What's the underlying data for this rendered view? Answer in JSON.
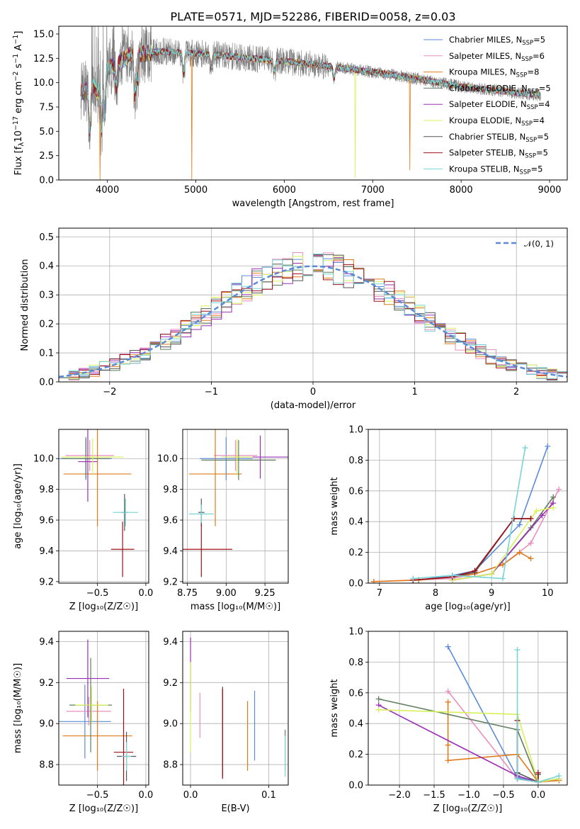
{
  "title": "PLATE=0571, MJD=52286, FIBERID=0058, z=0.03",
  "legend_labels": [
    "Chabrier MILES, N",
    "Salpeter MILES, N",
    "Kroupa MILES, N",
    "Chabrier ELODIE, N",
    "Salpeter ELODIE, N",
    "Kroupa ELODIE, N",
    "Chabrier STELIB, N",
    "Salpeter STELIB, N",
    "Kroupa STELIB, N"
  ],
  "legend_ssp_sub": "SSP",
  "legend_counts": [
    "=5",
    "=6",
    "=8",
    "=5",
    "=4",
    "=4",
    "=5",
    "=5",
    "=5"
  ],
  "colors": [
    "#5b8bd8",
    "#e88fbf",
    "#e07b1a",
    "#5f7f5f",
    "#9a2fb6",
    "#d8f05a",
    "#555555",
    "#a0101a",
    "#78d4d6"
  ],
  "chart_data": [
    {
      "type": "line",
      "title": "PLATE=0571, MJD=52286, FIBERID=0058, z=0.03",
      "xlabel": "wavelength [Angstrom, rest frame]",
      "ylabel_parts": [
        "Flux [f",
        "λ",
        "10",
        "−17",
        " erg cm",
        "−2",
        " s",
        "−1",
        " A",
        "−1",
        "]"
      ],
      "xlim": [
        3450,
        9200
      ],
      "ylim": [
        0,
        15.8
      ],
      "xticks": [
        4000,
        5000,
        6000,
        7000,
        8000,
        9000
      ],
      "yticks": [
        0.0,
        2.5,
        5.0,
        7.5,
        10.0,
        12.5,
        15.0
      ],
      "ytick_labels": [
        "0.0",
        "2.5",
        "5.0",
        "7.5",
        "10.0",
        "12.5",
        "15.0"
      ],
      "data_range": [
        3700,
        8900
      ],
      "continuum": [
        [
          3700,
          9.0
        ],
        [
          3800,
          9.3
        ],
        [
          3900,
          9.9
        ],
        [
          4000,
          11.5
        ],
        [
          4100,
          12.0
        ],
        [
          4200,
          12.5
        ],
        [
          4300,
          13.2
        ],
        [
          4400,
          13.0
        ],
        [
          4600,
          13.2
        ],
        [
          4800,
          13.1
        ],
        [
          5000,
          13.0
        ],
        [
          5200,
          12.9
        ],
        [
          5500,
          12.6
        ],
        [
          6000,
          12.2
        ],
        [
          6500,
          11.7
        ],
        [
          7000,
          11.1
        ],
        [
          7500,
          10.4
        ],
        [
          8000,
          9.6
        ],
        [
          8500,
          9.1
        ],
        [
          8900,
          8.7
        ]
      ],
      "dips": [
        [
          3800,
          5.0
        ],
        [
          3890,
          8.8
        ],
        [
          3934,
          5.2
        ],
        [
          3969,
          7.0
        ],
        [
          4101,
          9.5
        ],
        [
          4308,
          8.7
        ],
        [
          4340,
          10.3
        ],
        [
          4861,
          10.8
        ],
        [
          5175,
          11.6
        ],
        [
          5890,
          11.2
        ],
        [
          6563,
          10.4
        ]
      ],
      "spikes": [
        {
          "x": 3915,
          "y": 0.0,
          "series": 2
        },
        {
          "x": 4955,
          "y": 0.0,
          "series": 2
        },
        {
          "x": 6800,
          "y": 0.2,
          "series": 5
        },
        {
          "x": 7420,
          "y": 1.0,
          "series": 2
        }
      ]
    },
    {
      "type": "histogram",
      "xlabel": "(data-model)/error",
      "ylabel": "Normed distribution",
      "xlim": [
        -2.5,
        2.5
      ],
      "ylim": [
        0,
        0.53
      ],
      "xticks": [
        -2,
        -1,
        0,
        1,
        2
      ],
      "xtick_labels": [
        "−2",
        "−1",
        "0",
        "1",
        "2"
      ],
      "yticks": [
        0.0,
        0.1,
        0.2,
        0.3,
        0.4,
        0.5
      ],
      "ytick_labels": [
        "0.0",
        "0.1",
        "0.2",
        "0.3",
        "0.4",
        "0.5"
      ],
      "bin_width": 0.1,
      "gaussian_label": "𝒩(0, 1)",
      "gaussian_color": "#5b8bd8"
    },
    {
      "type": "errorbar",
      "xlabel": "Z [log₁₀(Z/Z☉)]",
      "ylabel": "age  [log₁₀(age/yr)]",
      "xlim": [
        -0.9,
        0.03
      ],
      "ylim": [
        9.19,
        10.19
      ],
      "xticks": [
        -0.5,
        0.0
      ],
      "xtick_labels": [
        "−0.5",
        "0.0"
      ],
      "yticks": [
        9.2,
        9.4,
        9.6,
        9.8,
        10.0
      ],
      "ytick_labels": [
        "9.2",
        "9.4",
        "9.6",
        "9.8",
        "10.0"
      ],
      "points": [
        {
          "series": 0,
          "x": -0.62,
          "y": 10.0,
          "xerr": 0.27,
          "yerr": 0.14
        },
        {
          "series": 1,
          "x": -0.58,
          "y": 10.02,
          "xerr": 0.25,
          "yerr": 0.1
        },
        {
          "series": 2,
          "x": -0.5,
          "y": 9.9,
          "xerr": 0.35,
          "yerr": 0.34
        },
        {
          "series": 3,
          "x": -0.62,
          "y": 10.0,
          "xerr": 0.25,
          "yerr": 0.13
        },
        {
          "series": 4,
          "x": -0.6,
          "y": 9.98,
          "xerr": 0.1,
          "yerr": 0.26
        },
        {
          "series": 5,
          "x": -0.55,
          "y": 10.01,
          "xerr": 0.32,
          "yerr": 0.12
        },
        {
          "series": 6,
          "x": -0.22,
          "y": 9.65,
          "xerr": 0.03,
          "yerr": 0.12
        },
        {
          "series": 7,
          "x": -0.24,
          "y": 9.41,
          "xerr": 0.12,
          "yerr": 0.18
        },
        {
          "series": 8,
          "x": -0.21,
          "y": 9.65,
          "xerr": 0.13,
          "yerr": 0.09
        }
      ]
    },
    {
      "type": "errorbar",
      "xlabel": "mass [log₁₀(M/M☉)]",
      "ylabel": "",
      "xlim": [
        8.72,
        9.4
      ],
      "ylim": [
        9.19,
        10.19
      ],
      "xticks": [
        8.75,
        9.0,
        9.25
      ],
      "xtick_labels": [
        "8.75",
        "9.00",
        "9.25"
      ],
      "yticks": [
        9.2,
        9.4,
        9.6,
        9.8,
        10.0
      ],
      "ytick_labels": [
        "9.2",
        "9.4",
        "9.6",
        "9.8",
        "10.0"
      ],
      "points": [
        {
          "series": 0,
          "x": 9.0,
          "y": 10.0,
          "xerr": 0.17,
          "yerr": 0.14
        },
        {
          "series": 1,
          "x": 9.06,
          "y": 10.02,
          "xerr": 0.14,
          "yerr": 0.1
        },
        {
          "series": 2,
          "x": 8.93,
          "y": 9.9,
          "xerr": 0.17,
          "yerr": 0.34
        },
        {
          "series": 3,
          "x": 9.08,
          "y": 9.99,
          "xerr": 0.24,
          "yerr": 0.13
        },
        {
          "series": 4,
          "x": 9.22,
          "y": 10.01,
          "xerr": 0.2,
          "yerr": 0.14
        },
        {
          "series": 5,
          "x": 9.07,
          "y": 10.01,
          "xerr": 0.1,
          "yerr": 0.12
        },
        {
          "series": 6,
          "x": 8.84,
          "y": 9.65,
          "xerr": 0.02,
          "yerr": 0.09
        },
        {
          "series": 7,
          "x": 8.84,
          "y": 9.41,
          "xerr": 0.2,
          "yerr": 0.18
        },
        {
          "series": 8,
          "x": 8.84,
          "y": 9.64,
          "xerr": 0.08,
          "yerr": 0.06
        }
      ]
    },
    {
      "type": "line",
      "xlabel": "age  [log₁₀(age/yr)]",
      "ylabel": "mass weight",
      "xlim": [
        6.8,
        10.35
      ],
      "ylim": [
        0,
        1.0
      ],
      "xticks": [
        7,
        8,
        9,
        10
      ],
      "xtick_labels": [
        "7",
        "8",
        "9",
        "10"
      ],
      "yticks": [
        0.0,
        0.2,
        0.4,
        0.6,
        0.8,
        1.0
      ],
      "ytick_labels": [
        "0.0",
        "0.2",
        "0.4",
        "0.6",
        "0.8",
        "1.0"
      ],
      "series": [
        {
          "series": 0,
          "x": [
            7.7,
            8.3,
            8.7,
            9.5,
            10.0
          ],
          "y": [
            0.02,
            0.05,
            0.08,
            0.38,
            0.89
          ]
        },
        {
          "series": 1,
          "x": [
            6.9,
            7.6,
            8.3,
            8.7,
            9.2,
            9.7,
            10.2
          ],
          "y": [
            0.01,
            0.02,
            0.03,
            0.06,
            0.12,
            0.26,
            0.61
          ]
        },
        {
          "series": 2,
          "x": [
            6.9,
            7.7,
            8.3,
            8.7,
            9.2,
            9.5,
            9.7
          ],
          "y": [
            0.01,
            0.02,
            0.04,
            0.06,
            0.12,
            0.2,
            0.16
          ]
        },
        {
          "series": 3,
          "x": [
            8.3,
            9.0,
            9.7,
            10.1
          ],
          "y": [
            0.02,
            0.06,
            0.36,
            0.56
          ]
        },
        {
          "series": 4,
          "x": [
            8.3,
            9.0,
            9.9,
            10.1
          ],
          "y": [
            0.02,
            0.06,
            0.44,
            0.52
          ]
        },
        {
          "series": 5,
          "x": [
            8.3,
            9.0,
            9.8,
            10.1
          ],
          "y": [
            0.02,
            0.06,
            0.47,
            0.49
          ]
        },
        {
          "series": 6,
          "x": [
            7.6,
            8.3,
            8.7,
            9.4,
            9.7
          ],
          "y": [
            0.02,
            0.04,
            0.07,
            0.42,
            0.42
          ]
        },
        {
          "series": 7,
          "x": [
            7.6,
            8.3,
            8.7,
            9.4,
            9.7
          ],
          "y": [
            0.02,
            0.04,
            0.08,
            0.42,
            0.42
          ]
        },
        {
          "series": 8,
          "x": [
            7.6,
            8.3,
            9.2,
            9.6
          ],
          "y": [
            0.03,
            0.05,
            0.03,
            0.88
          ]
        }
      ]
    },
    {
      "type": "errorbar",
      "xlabel": "Z [log₁₀(Z/Z☉)]",
      "ylabel": "mass [log₁₀(M/M☉)]",
      "xlim": [
        -0.9,
        0.03
      ],
      "ylim": [
        8.7,
        9.45
      ],
      "xticks": [
        -0.5,
        0.0
      ],
      "xtick_labels": [
        "−0.5",
        "0.0"
      ],
      "yticks": [
        8.8,
        9.0,
        9.2,
        9.4
      ],
      "ytick_labels": [
        "8.8",
        "9.0",
        "9.2",
        "9.4"
      ],
      "points": [
        {
          "series": 0,
          "x": -0.63,
          "y": 9.01,
          "xerr": 0.27,
          "yerr": 0.18
        },
        {
          "series": 1,
          "x": -0.59,
          "y": 9.06,
          "xerr": 0.23,
          "yerr": 0.07
        },
        {
          "series": 2,
          "x": -0.5,
          "y": 8.94,
          "xerr": 0.36,
          "yerr": 0.17
        },
        {
          "series": 3,
          "x": -0.57,
          "y": 9.09,
          "xerr": 0.22,
          "yerr": 0.23
        },
        {
          "series": 4,
          "x": -0.6,
          "y": 9.22,
          "xerr": 0.22,
          "yerr": 0.19
        },
        {
          "series": 5,
          "x": -0.56,
          "y": 9.09,
          "xerr": 0.17,
          "yerr": 0.09
        },
        {
          "series": 6,
          "x": -0.2,
          "y": 8.84,
          "xerr": 0.1,
          "yerr": 0.12
        },
        {
          "series": 7,
          "x": -0.23,
          "y": 8.86,
          "xerr": 0.1,
          "yerr": 0.31
        },
        {
          "series": 8,
          "x": -0.2,
          "y": 8.84,
          "xerr": 0.05,
          "yerr": 0.07
        }
      ]
    },
    {
      "type": "errorbar",
      "xlabel": "E(B-V)",
      "ylabel": "",
      "xlim": [
        -0.01,
        0.125
      ],
      "ylim": [
        8.7,
        9.45
      ],
      "xticks": [
        0.0,
        0.1
      ],
      "xtick_labels": [
        "0.0",
        "0.1"
      ],
      "yticks": [
        8.8,
        9.0,
        9.2,
        9.4
      ],
      "ytick_labels": [
        "8.8",
        "9.0",
        "9.2",
        "9.4"
      ],
      "points": [
        {
          "series": 0,
          "x": 0.082,
          "y": 8.99,
          "xerr": 0.0,
          "yerr": 0.17
        },
        {
          "series": 1,
          "x": 0.012,
          "y": 9.04,
          "xerr": 0.0,
          "yerr": 0.11
        },
        {
          "series": 2,
          "x": 0.073,
          "y": 8.94,
          "xerr": 0.0,
          "yerr": 0.17
        },
        {
          "series": 3,
          "x": 0.121,
          "y": 8.87,
          "xerr": 0.0,
          "yerr": 0.1
        },
        {
          "series": 4,
          "x": 0.0,
          "y": 9.24,
          "xerr": 0.0,
          "yerr": 0.18
        },
        {
          "series": 5,
          "x": 0.0,
          "y": 9.08,
          "xerr": 0.0,
          "yerr": 0.22
        },
        {
          "series": 6,
          "x": 0.041,
          "y": 8.96,
          "xerr": 0.0,
          "yerr": 0.22
        },
        {
          "series": 7,
          "x": 0.041,
          "y": 8.95,
          "xerr": 0.0,
          "yerr": 0.22
        },
        {
          "series": 8,
          "x": 0.121,
          "y": 8.84,
          "xerr": 0.0,
          "yerr": 0.1
        }
      ]
    },
    {
      "type": "line",
      "xlabel": "Z [log₁₀(Z/Z☉)]",
      "ylabel": "mass weight",
      "xlim": [
        -2.45,
        0.42
      ],
      "ylim": [
        0,
        1.0
      ],
      "xticks": [
        -2.0,
        -1.5,
        -1.0,
        -0.5,
        0.0
      ],
      "xtick_labels": [
        "−2.0",
        "−1.5",
        "−1.0",
        "−0.5",
        "0.0"
      ],
      "yticks": [
        0.0,
        0.2,
        0.4,
        0.6,
        0.8,
        1.0
      ],
      "ytick_labels": [
        "0.0",
        "0.2",
        "0.4",
        "0.6",
        "0.8",
        "1.0"
      ],
      "series": [
        {
          "series": 0,
          "x": [
            -1.3,
            -0.3,
            0.0,
            0.3
          ],
          "y": [
            0.9,
            0.05,
            0.02,
            0.04
          ]
        },
        {
          "series": 1,
          "x": [
            -1.3,
            -0.3,
            0.0,
            0.3
          ],
          "y": [
            0.61,
            0.04,
            0.02,
            0.03
          ]
        },
        {
          "series": 2,
          "x": [
            -1.3,
            -1.3,
            -1.3,
            -0.3,
            0.0,
            0.3
          ],
          "y": [
            0.54,
            0.26,
            0.16,
            0.2,
            0.02,
            0.03
          ]
        },
        {
          "series": 3,
          "x": [
            -2.3,
            -0.3,
            0.0,
            0.3
          ],
          "y": [
            0.56,
            0.36,
            0.02,
            0.04
          ]
        },
        {
          "series": 4,
          "x": [
            -2.3,
            -0.3,
            0.0,
            0.3
          ],
          "y": [
            0.52,
            0.06,
            0.02,
            0.04
          ]
        },
        {
          "series": 5,
          "x": [
            -2.3,
            -0.3,
            0.0,
            0.3
          ],
          "y": [
            0.49,
            0.46,
            0.02,
            0.04
          ]
        },
        {
          "series": 6,
          "x": [
            -0.3,
            -0.3,
            0.0,
            0.0
          ],
          "y": [
            0.42,
            0.08,
            0.02,
            0.07
          ]
        },
        {
          "series": 7,
          "x": [
            -0.3,
            -0.3,
            0.0,
            0.0
          ],
          "y": [
            0.42,
            0.04,
            0.02,
            0.08
          ]
        },
        {
          "series": 8,
          "x": [
            -0.3,
            -0.3,
            0.0,
            0.3
          ],
          "y": [
            0.88,
            0.04,
            0.02,
            0.06
          ]
        }
      ]
    }
  ]
}
